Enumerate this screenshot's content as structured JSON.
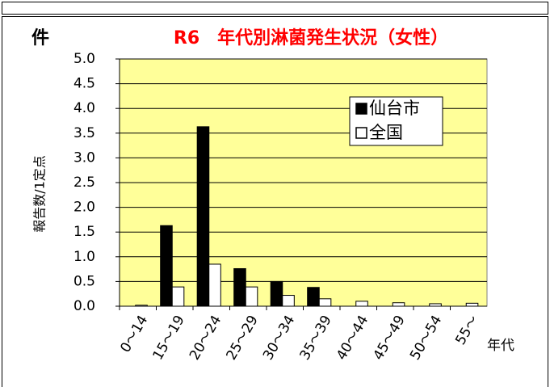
{
  "chart_data": {
    "type": "bar",
    "title": "R6　年代別淋菌発生状況（女性）",
    "unit_label": "件",
    "y_label": "報告数/1定点",
    "x_label": "年代",
    "categories": [
      "0～14",
      "15～19",
      "20～24",
      "25～29",
      "30～34",
      "35～39",
      "40～44",
      "45～49",
      "50～54",
      "55～"
    ],
    "series": [
      {
        "name": "仙台市",
        "color": "#000000",
        "values": [
          0,
          1.63,
          3.63,
          0.76,
          0.5,
          0.38,
          0,
          0,
          0,
          0
        ]
      },
      {
        "name": "全国",
        "color": "#ffffff",
        "values": [
          0.02,
          0.39,
          0.85,
          0.39,
          0.22,
          0.15,
          0.1,
          0.07,
          0.05,
          0.06
        ]
      }
    ],
    "ylim": [
      0,
      5
    ],
    "yticks": [
      {
        "value": 0,
        "label": "0.0"
      },
      0.5,
      {
        "value": 1,
        "label": "1.0"
      },
      1.5,
      {
        "value": 2,
        "label": "2.0"
      },
      2.5,
      {
        "value": 3,
        "label": "3.0"
      },
      3.5,
      {
        "value": 4,
        "label": "4.0"
      },
      4.5,
      {
        "value": 5,
        "label": "5.0"
      }
    ],
    "grid": true,
    "background": "#ffff99",
    "legend": "upper right"
  }
}
